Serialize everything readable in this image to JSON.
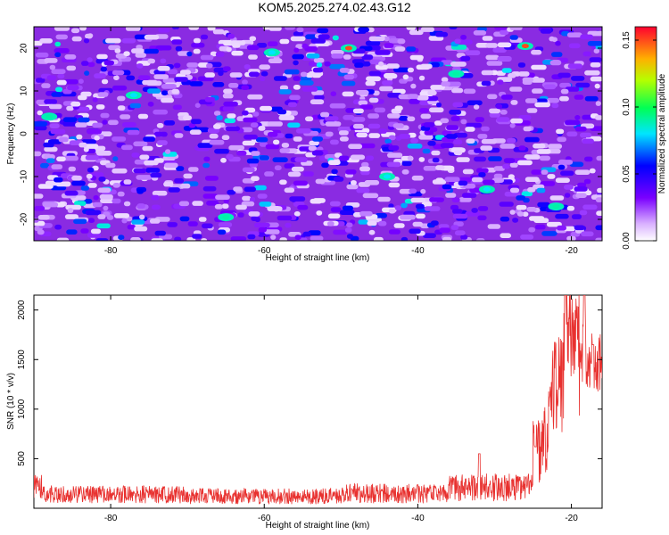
{
  "title": "KOM5.2025.274.02.43.G12",
  "chart_data": [
    {
      "type": "heatmap",
      "xlabel": "Height of straight line (km)",
      "ylabel": "Frequency (Hz)",
      "xlim": [
        -90,
        -16
      ],
      "ylim": [
        -25,
        25
      ],
      "xticks": [
        -80,
        -60,
        -40,
        -20
      ],
      "yticks": [
        -20,
        -10,
        0,
        10,
        20
      ],
      "colorbar": {
        "label": "Normalized spectral amplitude",
        "range": [
          0.0,
          0.16
        ],
        "ticks": [
          "0.00",
          "0.05",
          "0.10",
          "0.15"
        ]
      },
      "seed": 274,
      "hotspots": [
        {
          "x": -49,
          "y": 20,
          "value": 0.15
        },
        {
          "x": -26,
          "y": 20.5,
          "value": 0.15
        },
        {
          "x": -88,
          "y": 4,
          "value": 0.09
        },
        {
          "x": -35,
          "y": 14,
          "value": 0.09
        },
        {
          "x": -22,
          "y": -17,
          "value": 0.09
        },
        {
          "x": -65,
          "y": -19.5,
          "value": 0.09
        },
        {
          "x": -44,
          "y": -10,
          "value": 0.08
        },
        {
          "x": -31,
          "y": -13,
          "value": 0.08
        },
        {
          "x": -77,
          "y": 9,
          "value": 0.08
        },
        {
          "x": -59,
          "y": 19,
          "value": 0.08
        }
      ]
    },
    {
      "type": "line",
      "xlabel": "Height of straight line (km)",
      "ylabel": "SNR (10 * v/v)",
      "xlim": [
        -90,
        -16
      ],
      "ylim": [
        0,
        2150
      ],
      "xticks": [
        -80,
        -60,
        -40,
        -20
      ],
      "yticks": [
        500,
        1000,
        1500,
        2000
      ],
      "color": "#e8312f",
      "seed": 2025,
      "segments": [
        {
          "x0": -90,
          "x1": -89,
          "base": 220,
          "noise": 120
        },
        {
          "x0": -89,
          "x1": -70,
          "base": 140,
          "noise": 90
        },
        {
          "x0": -70,
          "x1": -50,
          "base": 120,
          "noise": 80
        },
        {
          "x0": -50,
          "x1": -36,
          "base": 150,
          "noise": 100
        },
        {
          "x0": -36,
          "x1": -25,
          "base": 210,
          "noise": 140
        },
        {
          "x0": -25,
          "x1": -23,
          "base": 650,
          "noise": 400
        },
        {
          "x0": -23,
          "x1": -21,
          "base": 1250,
          "noise": 500
        },
        {
          "x0": -21,
          "x1": -19,
          "base": 1750,
          "noise": 450
        },
        {
          "x0": -19,
          "x1": -18,
          "base": 1400,
          "noise": 500
        },
        {
          "x0": -18,
          "x1": -16,
          "base": 1450,
          "noise": 350
        }
      ],
      "peaks": [
        {
          "x": -32,
          "y": 550
        },
        {
          "x": -24.7,
          "y": 620
        },
        {
          "x": -20.8,
          "y": 2150
        },
        {
          "x": -18.3,
          "y": 2150
        },
        {
          "x": -17.2,
          "y": 1650
        }
      ]
    }
  ]
}
